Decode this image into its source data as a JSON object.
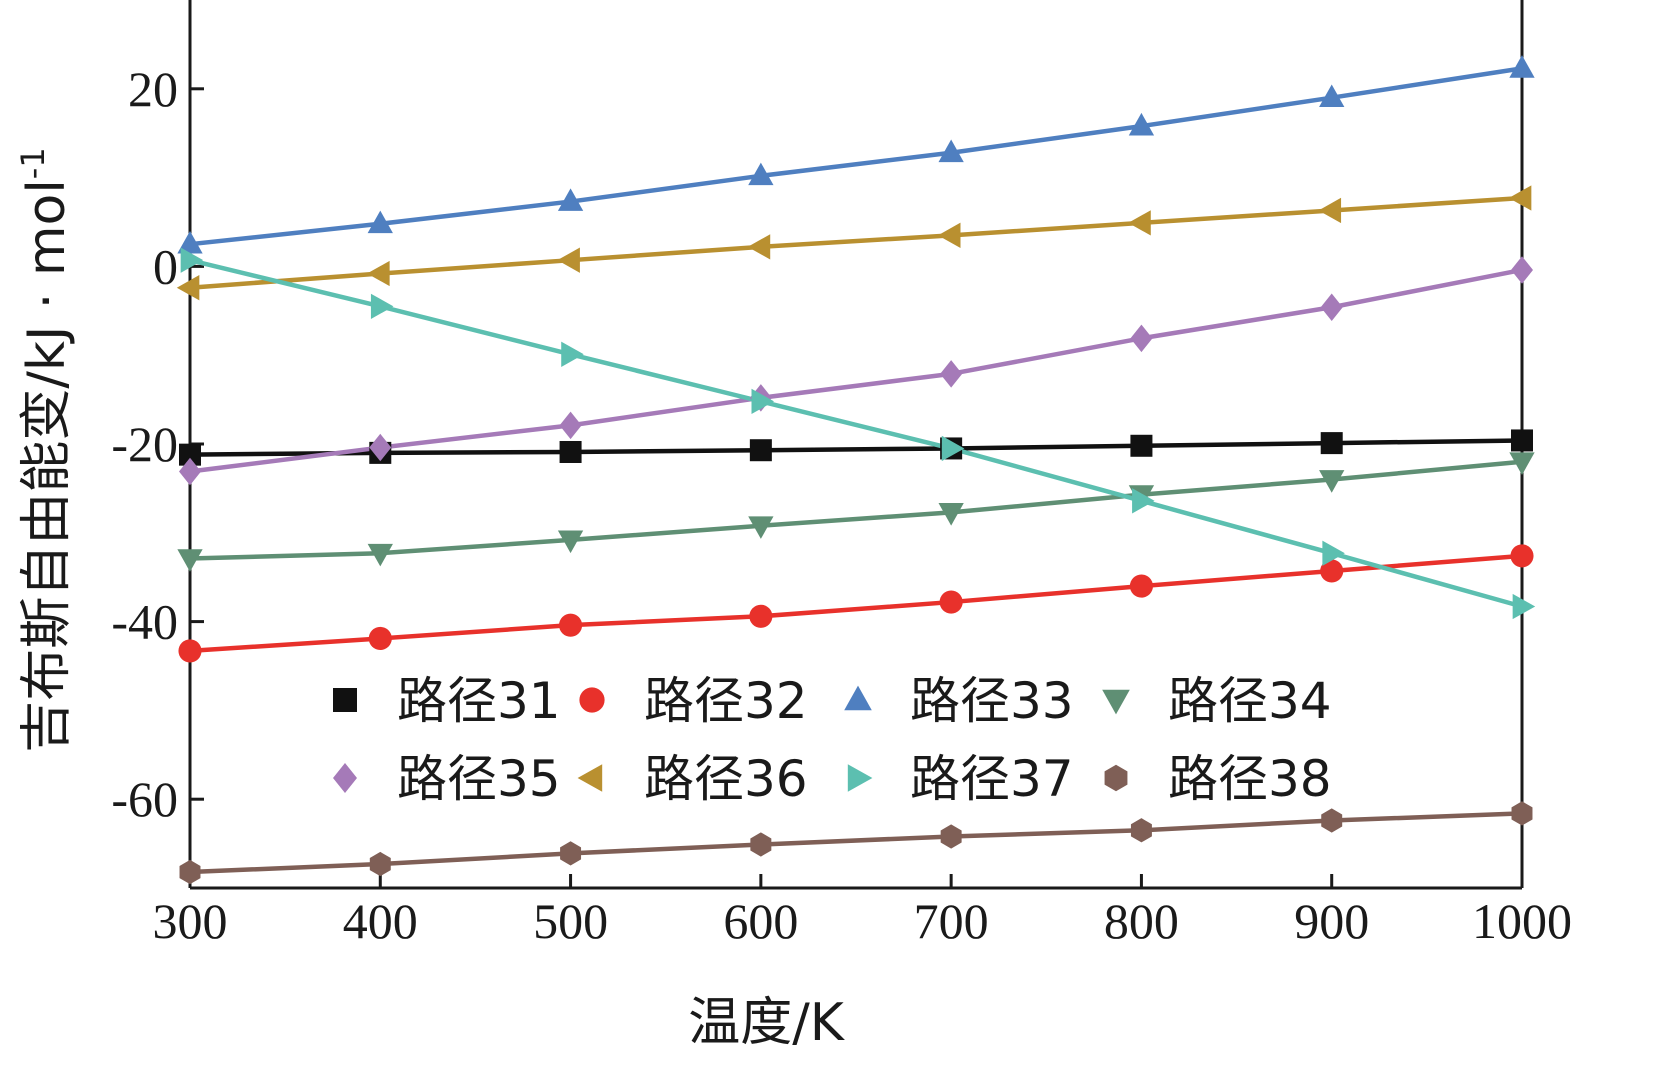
{
  "chart_data": {
    "type": "line",
    "title": "",
    "xlabel": "温度/K",
    "ylabel": "吉布斯自由能变/kJ · mol",
    "ylabel_superscript": "-1",
    "xlim": [
      300,
      1000
    ],
    "ylim": [
      -70,
      30
    ],
    "xticks": [
      300,
      400,
      500,
      600,
      700,
      800,
      900,
      1000
    ],
    "yticks": [
      -60,
      -40,
      -20,
      0,
      20
    ],
    "grid": false,
    "legend_position": "center",
    "x": [
      300,
      400,
      500,
      600,
      700,
      800,
      900,
      1000
    ],
    "series": [
      {
        "name": "路径31",
        "color": "#111111",
        "marker": "square",
        "values": [
          -21.2,
          -21.0,
          -20.9,
          -20.7,
          -20.5,
          -20.2,
          -19.9,
          -19.6
        ]
      },
      {
        "name": "路径32",
        "color": "#e8312b",
        "marker": "circle",
        "values": [
          -43.3,
          -41.9,
          -40.4,
          -39.4,
          -37.8,
          -36.0,
          -34.3,
          -32.6
        ]
      },
      {
        "name": "路径33",
        "color": "#4f7fc0",
        "marker": "triangle-up",
        "values": [
          2.5,
          4.8,
          7.3,
          10.2,
          12.8,
          15.8,
          19.0,
          22.3
        ]
      },
      {
        "name": "路径34",
        "color": "#5f8f74",
        "marker": "triangle-down",
        "values": [
          -32.9,
          -32.3,
          -30.8,
          -29.2,
          -27.7,
          -25.7,
          -24.0,
          -22.0
        ]
      },
      {
        "name": "路径35",
        "color": "#a57ab8",
        "marker": "diamond",
        "values": [
          -23.1,
          -20.4,
          -17.9,
          -14.8,
          -12.1,
          -8.1,
          -4.6,
          -0.4
        ]
      },
      {
        "name": "路径36",
        "color": "#b99030",
        "marker": "triangle-left",
        "values": [
          -2.4,
          -0.8,
          0.7,
          2.2,
          3.5,
          4.9,
          6.3,
          7.7
        ]
      },
      {
        "name": "路径37",
        "color": "#5cbfb0",
        "marker": "triangle-right",
        "values": [
          0.7,
          -4.5,
          -9.9,
          -15.2,
          -20.5,
          -26.4,
          -32.3,
          -38.3
        ]
      },
      {
        "name": "路径38",
        "color": "#7f5f56",
        "marker": "hexagon",
        "values": [
          -68.2,
          -67.3,
          -66.1,
          -65.1,
          -64.2,
          -63.5,
          -62.4,
          -61.6
        ]
      }
    ]
  }
}
